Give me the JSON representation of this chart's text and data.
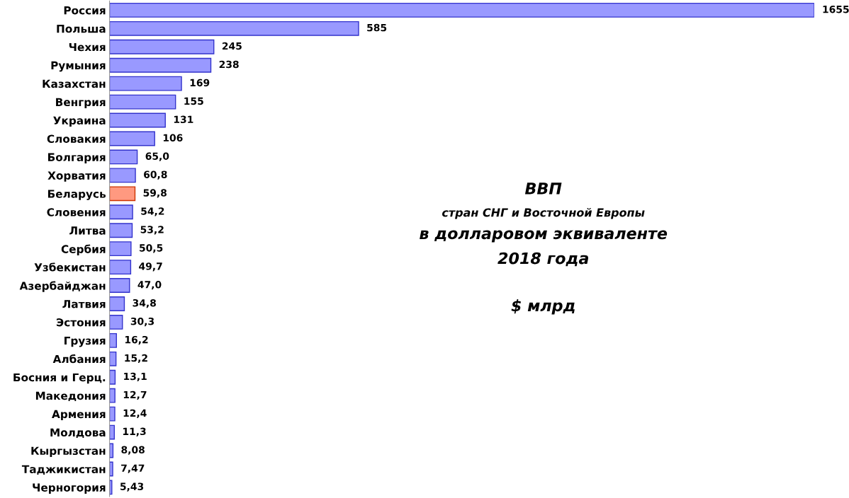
{
  "chart_data": {
    "type": "bar",
    "orientation": "horizontal",
    "title": "ВВП",
    "subtitle": "стран СНГ и Восточной Европы",
    "annotations": [
      "в долларовом эквиваленте",
      "2018 года",
      "$ млрд"
    ],
    "categories": [
      "Россия",
      "Польша",
      "Чехия",
      "Румыния",
      "Казахстан",
      "Венгрия",
      "Украина",
      "Словакия",
      "Болгария",
      "Хорватия",
      "Беларусь",
      "Словения",
      "Литва",
      "Сербия",
      "Узбекистан",
      "Азербайджан",
      "Латвия",
      "Эстония",
      "Грузия",
      "Албания",
      "Босния и Герц.",
      "Македония",
      "Армения",
      "Молдова",
      "Кыргызстан",
      "Таджикистан",
      "Черногория"
    ],
    "values": [
      1655,
      585,
      245,
      238,
      169,
      155,
      131,
      106,
      65.0,
      60.8,
      59.8,
      54.2,
      53.2,
      50.5,
      49.7,
      47.0,
      34.8,
      30.3,
      16.2,
      15.2,
      13.1,
      12.7,
      12.4,
      11.3,
      8.08,
      7.47,
      5.43
    ],
    "value_labels": [
      "1655",
      "585",
      "245",
      "238",
      "169",
      "155",
      "131",
      "106",
      "65,0",
      "60,8",
      "59,8",
      "54,2",
      "53,2",
      "50,5",
      "49,7",
      "47,0",
      "34,8",
      "30,3",
      "16,2",
      "15,2",
      "13,1",
      "12,7",
      "12,4",
      "11,3",
      "8,08",
      "7,47",
      "5,43"
    ],
    "colors": [
      "#9999ff",
      "#9999ff",
      "#9999ff",
      "#9999ff",
      "#9999ff",
      "#9999ff",
      "#9999ff",
      "#9999ff",
      "#9999ff",
      "#9999ff",
      "#ff9980",
      "#9999ff",
      "#9999ff",
      "#9999ff",
      "#9999ff",
      "#9999ff",
      "#9999ff",
      "#9999ff",
      "#9999ff",
      "#9999ff",
      "#9999ff",
      "#9999ff",
      "#9999ff",
      "#9999ff",
      "#9999ff",
      "#9999ff",
      "#9999ff"
    ],
    "grid": false,
    "legend": false
  }
}
